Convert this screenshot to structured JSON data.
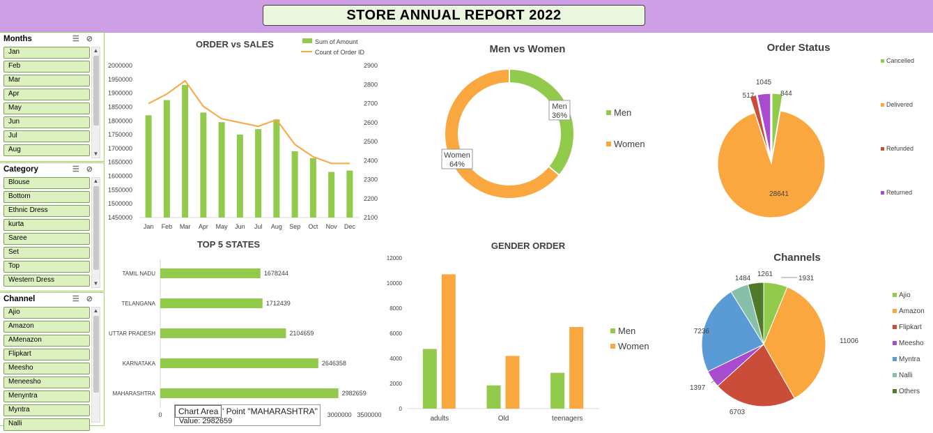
{
  "title": "STORE ANNUAL REPORT 2022",
  "slicers": [
    {
      "title": "Months",
      "items": [
        "Jan",
        "Feb",
        "Mar",
        "Apr",
        "May",
        "Jun",
        "Jul",
        "Aug"
      ]
    },
    {
      "title": "Category",
      "items": [
        "Blouse",
        "Bottom",
        "Ethnic Dress",
        "kurta",
        "Saree",
        "Set",
        "Top",
        "Western Dress"
      ]
    },
    {
      "title": "Channel",
      "items": [
        "Ajio",
        "Amazon",
        "AMenazon",
        "Flipkart",
        "Meesho",
        "Meneesho",
        "Menyntra",
        "Myntra",
        "Nalli"
      ]
    }
  ],
  "tooltip": {
    "label": "Chart Area",
    "point": "' Point \"MAHARASHTRA\"",
    "value": "Value: 2982659"
  },
  "colors": {
    "green": "#92cb4b",
    "orange": "#f9a73e",
    "red": "#c94d38",
    "purple": "#a84bd0",
    "blue": "#5b9bd5",
    "teal": "#86c0a8",
    "darkgreen": "#4f7a2a"
  },
  "chart_data": [
    {
      "type": "bar",
      "title": "ORDER vs SALES",
      "categories": [
        "Jan",
        "Feb",
        "Mar",
        "Apr",
        "May",
        "Jun",
        "Jul",
        "Aug",
        "Sep",
        "Oct",
        "Nov",
        "Dec"
      ],
      "series": [
        {
          "name": "Sum of Amount",
          "type": "bar",
          "axis": "left",
          "values": [
            1820000,
            1875000,
            1930000,
            1830000,
            1795000,
            1750000,
            1770000,
            1805000,
            1690000,
            1665000,
            1615000,
            1620000
          ]
        },
        {
          "name": "Count of Order ID",
          "type": "line",
          "axis": "right",
          "values": [
            2700,
            2750,
            2820,
            2685,
            2620,
            2600,
            2580,
            2615,
            2485,
            2420,
            2385,
            2385
          ]
        }
      ],
      "ylim": [
        1450000,
        2000000
      ],
      "yticks": [
        "1450000",
        "1500000",
        "1550000",
        "1600000",
        "1650000",
        "1700000",
        "1750000",
        "1800000",
        "1850000",
        "1900000",
        "1950000",
        "2000000"
      ],
      "y2lim": [
        2100,
        2900
      ],
      "y2ticks": [
        "2100",
        "2200",
        "2300",
        "2400",
        "2500",
        "2600",
        "2700",
        "2800",
        "2900"
      ]
    },
    {
      "type": "pie",
      "variant": "donut",
      "title": "Men vs Women",
      "labels": [
        "Men",
        "Women"
      ],
      "values": [
        36,
        64
      ],
      "data_labels": [
        [
          "Men",
          "36%"
        ],
        [
          "Women",
          "64%"
        ]
      ]
    },
    {
      "type": "pie",
      "title": "Order Status",
      "labels": [
        "Cancelled",
        "Delivered",
        "Refunded",
        "Returned"
      ],
      "values": [
        844,
        28641,
        517,
        1045
      ]
    },
    {
      "type": "bar",
      "orientation": "horizontal",
      "title": "TOP 5 STATES",
      "categories": [
        "TAMIL NADU",
        "TELANGANA",
        "UTTAR PRADESH",
        "KARNATAKA",
        "MAHARASHTRA"
      ],
      "values": [
        1678244,
        1712439,
        2104659,
        2646358,
        2982659
      ],
      "xlim": [
        0,
        3500000
      ],
      "xticks": [
        "0",
        "3000000",
        "3500000"
      ]
    },
    {
      "type": "bar",
      "title": "GENDER ORDER",
      "categories": [
        "adults",
        "Old",
        "teenagers"
      ],
      "series": [
        {
          "name": "Men",
          "values": [
            4750,
            1850,
            2850
          ]
        },
        {
          "name": "Women",
          "values": [
            10700,
            4200,
            6500
          ]
        }
      ],
      "ylim": [
        0,
        12000
      ],
      "yticks": [
        "0",
        "2000",
        "4000",
        "6000",
        "8000",
        "10000",
        "12000"
      ]
    },
    {
      "type": "pie",
      "title": "Channels",
      "labels": [
        "Ajio",
        "Amazon",
        "Flipkart",
        "Meesho",
        "Myntra",
        "Nalli",
        "Others"
      ],
      "values": [
        1931,
        11006,
        6703,
        1397,
        7236,
        1484,
        1261
      ]
    }
  ]
}
